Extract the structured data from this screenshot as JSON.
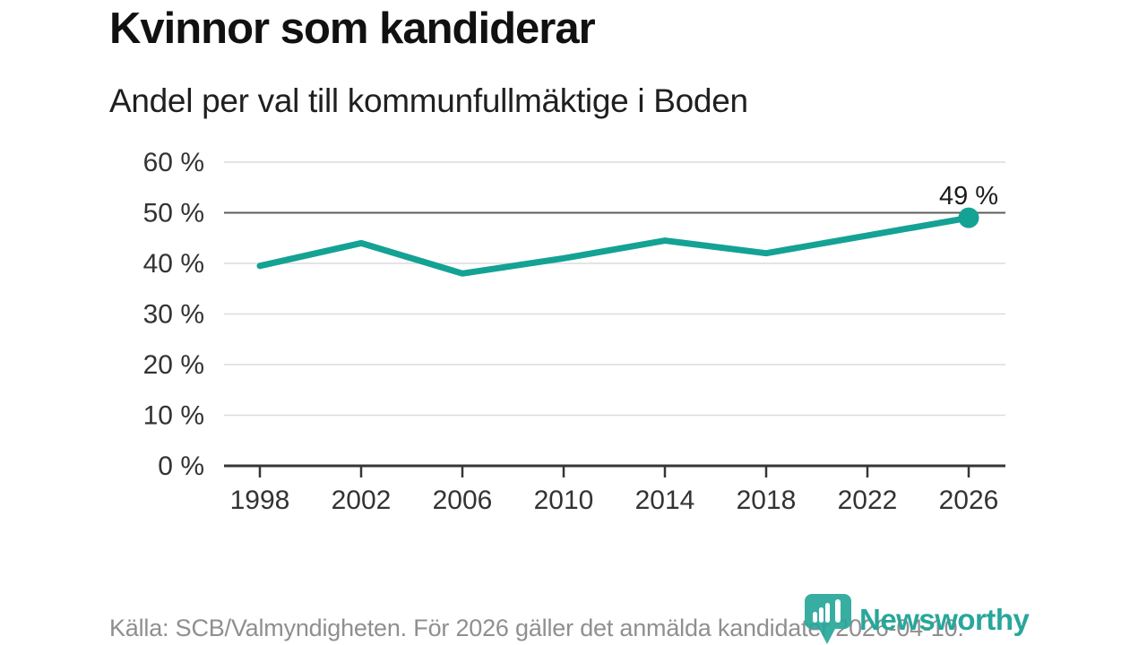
{
  "header": {
    "title": "Kvinnor som kandiderar",
    "subtitle": "Andel per val till kommunfullmäktige i Boden"
  },
  "chart_data": {
    "type": "line",
    "title": "Kvinnor som kandiderar",
    "subtitle": "Andel per val till kommunfullmäktige i Boden",
    "x": [
      1998,
      2002,
      2006,
      2010,
      2014,
      2018,
      2022,
      2026
    ],
    "xticks": [
      "1998",
      "2002",
      "2006",
      "2010",
      "2014",
      "2018",
      "2022",
      "2026"
    ],
    "series": [
      {
        "name": "Kvinnor som kandiderar",
        "values": [
          39.5,
          44,
          38,
          41,
          44.5,
          42,
          45.5,
          49
        ]
      }
    ],
    "ylim": [
      0,
      60
    ],
    "ytick_values": [
      0,
      10,
      20,
      30,
      40,
      50,
      60
    ],
    "ytick_labels": [
      "0 %",
      "10 %",
      "20 %",
      "30 %",
      "40 %",
      "50 %",
      "60 %"
    ],
    "xlabel": "",
    "ylabel": "",
    "grid": true,
    "emphasized_gridline": 50,
    "legend": "none",
    "last_point_marker": true,
    "annotation": {
      "label": "49 %",
      "x": 2026,
      "y": 49
    }
  },
  "footer": {
    "source": "Källa: SCB/Valmyndigheten. För 2026 gäller det anmälda kandidater 2026-04-10."
  },
  "logo": {
    "name": "Newsworthy",
    "icon": "bar-chart-map-pin-icon"
  },
  "colors": {
    "background": "#ffffff",
    "line": "#14a294",
    "marker": "#14a294",
    "grid": "#dcdcdc",
    "grid_emphasis": "#5c5c5c",
    "axis": "#363636",
    "title_text": "#111111",
    "tick_text": "#333333",
    "annotation_text": "#1c1c1c",
    "footer_text": "#8f8f8f",
    "logo": "#27a79b"
  }
}
